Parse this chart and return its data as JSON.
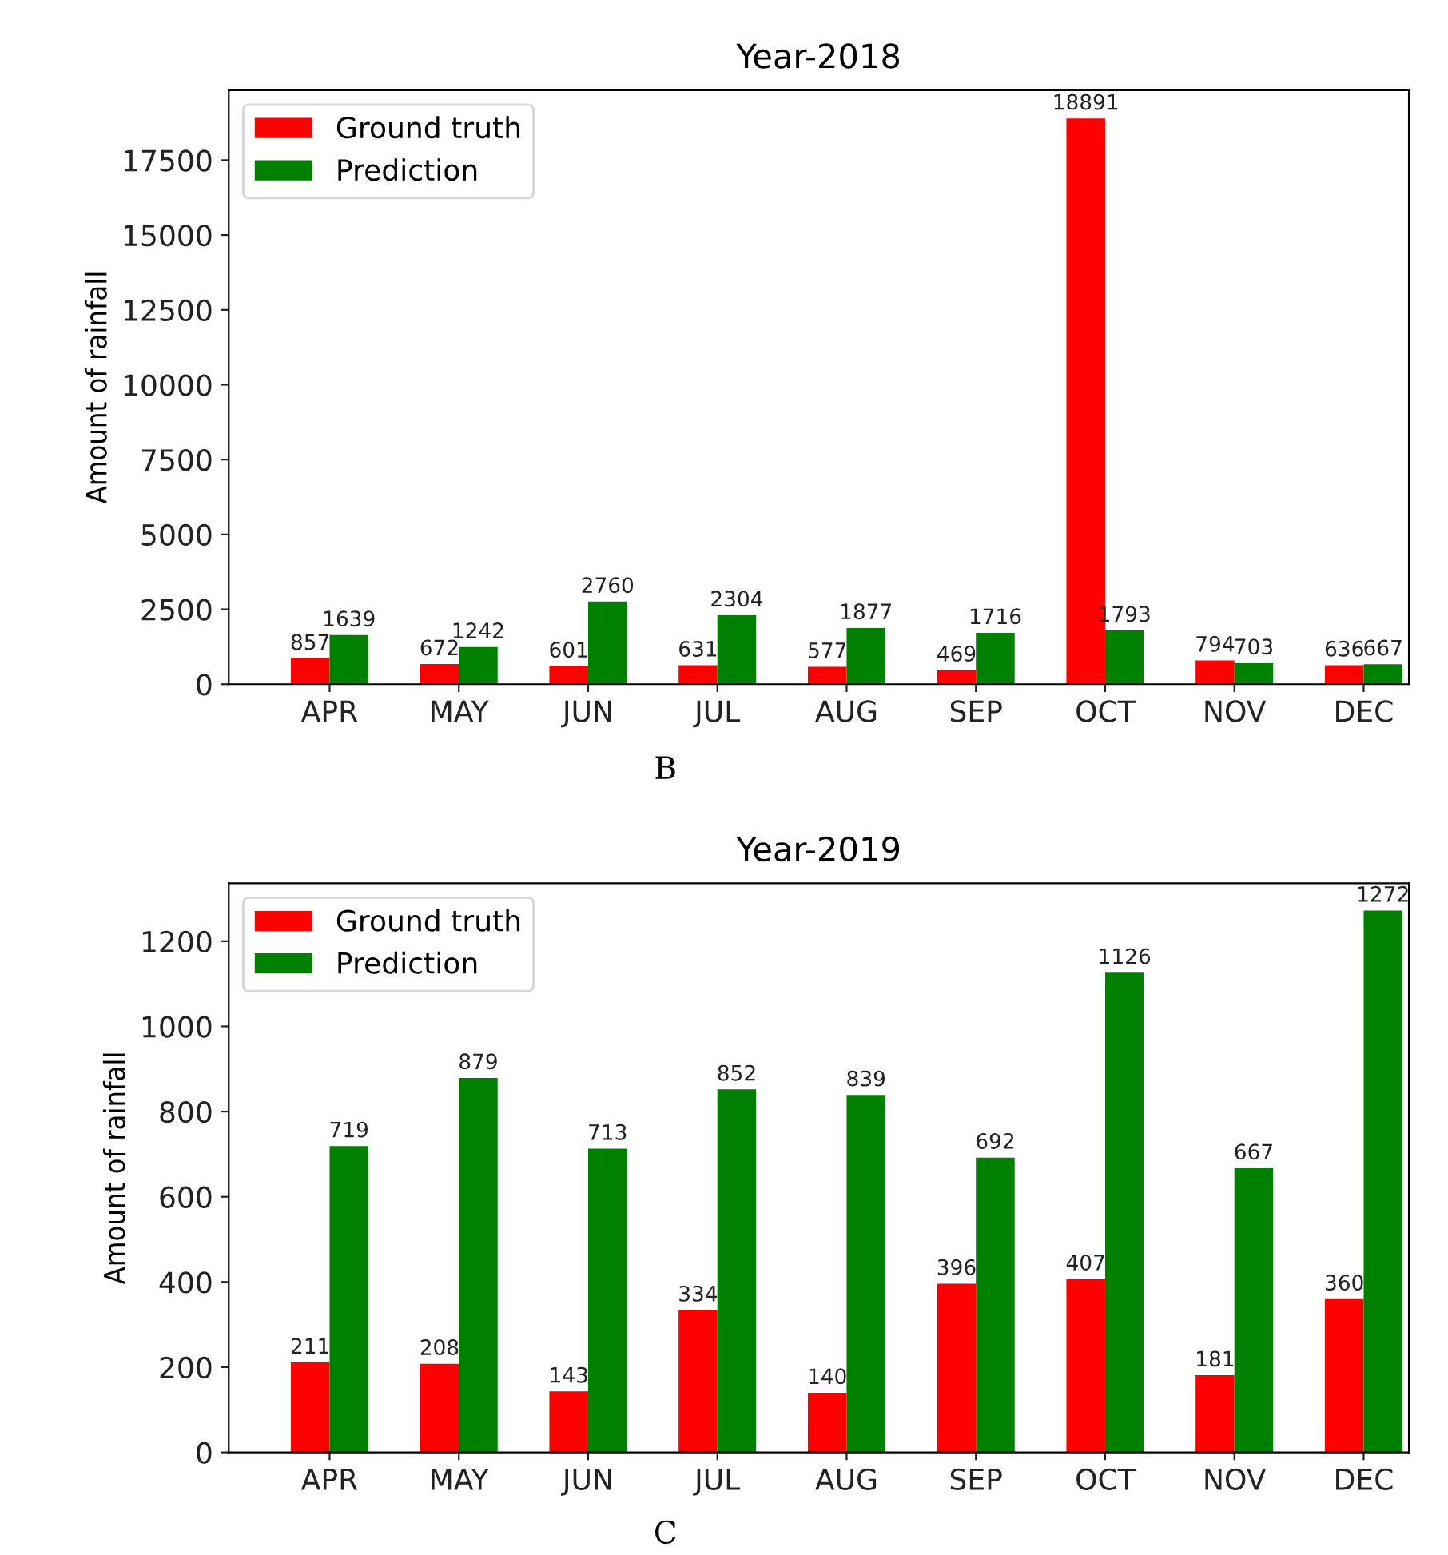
{
  "chart_data": [
    {
      "type": "bar",
      "title": "Year-2018",
      "ylabel": "Amount of rainfall",
      "categories": [
        "APR",
        "MAY",
        "JUN",
        "JUL",
        "AUG",
        "SEP",
        "OCT",
        "NOV",
        "DEC"
      ],
      "series": [
        {
          "name": "Ground truth",
          "color": "#ff0000",
          "values": [
            857,
            672,
            601,
            631,
            577,
            469,
            18891,
            794,
            636
          ]
        },
        {
          "name": "Prediction",
          "color": "#008000",
          "values": [
            1639,
            1242,
            2760,
            2304,
            1877,
            1716,
            1793,
            703,
            667
          ]
        }
      ],
      "ylim": [
        0,
        19836
      ],
      "yticks": [
        0,
        2500,
        5000,
        7500,
        10000,
        12500,
        15000,
        17500
      ],
      "data_labels": true,
      "legend": "top left",
      "grid": false,
      "annotations": [
        "B"
      ]
    },
    {
      "type": "bar",
      "title": "Year-2019",
      "ylabel": "Amount of rainfall",
      "categories": [
        "APR",
        "MAY",
        "JUN",
        "JUL",
        "AUG",
        "SEP",
        "OCT",
        "NOV",
        "DEC"
      ],
      "series": [
        {
          "name": "Ground truth",
          "color": "#ff0000",
          "values": [
            211,
            208,
            143,
            334,
            140,
            396,
            407,
            181,
            360
          ]
        },
        {
          "name": "Prediction",
          "color": "#008000",
          "values": [
            719,
            879,
            713,
            852,
            839,
            692,
            1126,
            667,
            1272
          ]
        }
      ],
      "ylim": [
        0,
        1336
      ],
      "yticks": [
        0,
        200,
        400,
        600,
        800,
        1000,
        1200
      ],
      "data_labels": true,
      "legend": "top left",
      "grid": false,
      "annotations": [
        "C"
      ]
    }
  ]
}
